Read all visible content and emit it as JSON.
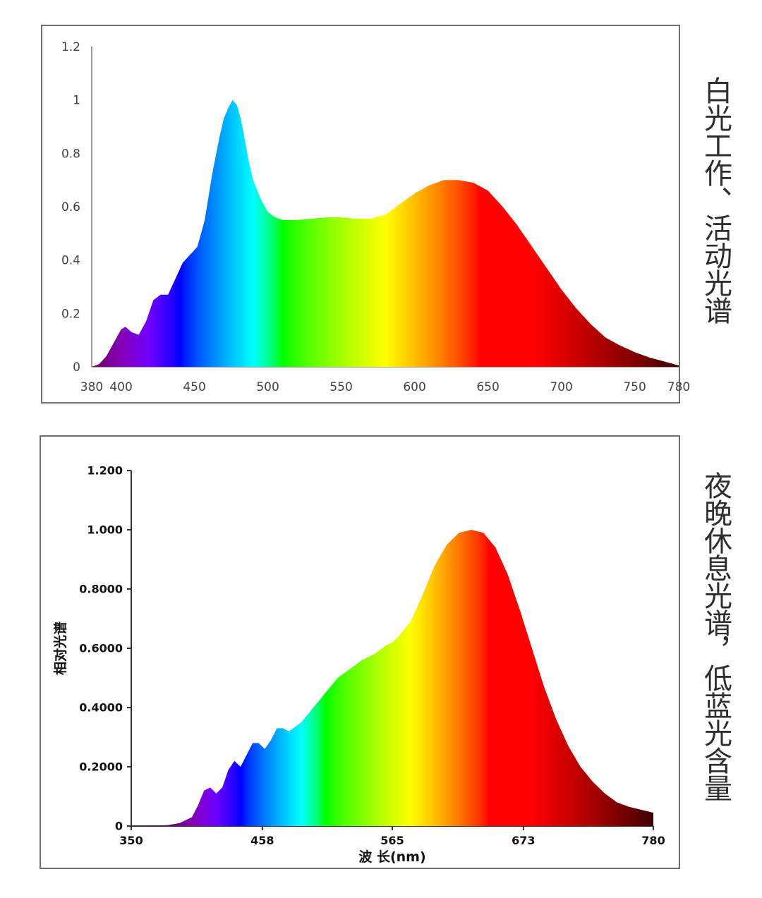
{
  "charts": {
    "day": {
      "caption": "白光工作、活动光谱",
      "y_ticks": [
        "0",
        "0.2",
        "0.4",
        "0.6",
        "0.8",
        "1",
        "1.2"
      ],
      "x_ticks": [
        "380",
        "400",
        "450",
        "500",
        "550",
        "600",
        "650",
        "700",
        "750",
        "780"
      ]
    },
    "night": {
      "caption": "夜晚休息光谱，低蓝光含量",
      "ylabel": "相对光谱",
      "xlabel": "波 长(nm)",
      "y_ticks": [
        "0",
        "0.2000",
        "0.4000",
        "0.6000",
        "0.8000",
        "1.000",
        "1.200"
      ],
      "x_ticks": [
        "350",
        "458",
        "565",
        "673",
        "780"
      ]
    }
  },
  "chart_data": [
    {
      "type": "area",
      "caption": "白光工作、活动光谱",
      "xlim": [
        380,
        780
      ],
      "ylim": [
        0,
        1.2
      ],
      "grid": false,
      "x_ticks": [
        380,
        400,
        450,
        500,
        550,
        600,
        650,
        700,
        750,
        780
      ],
      "y_ticks": [
        0,
        0.2,
        0.4,
        0.6,
        0.8,
        1,
        1.2
      ],
      "series": [
        {
          "x": [
            380,
            385,
            390,
            395,
            400,
            403,
            407,
            412,
            417,
            422,
            427,
            432,
            437,
            442,
            447,
            452,
            457,
            462,
            467,
            470,
            473,
            476,
            479,
            481,
            483,
            485,
            487,
            490,
            495,
            500,
            505,
            510,
            520,
            530,
            540,
            550,
            560,
            570,
            580,
            590,
            600,
            610,
            620,
            630,
            640,
            650,
            660,
            670,
            680,
            690,
            700,
            710,
            720,
            730,
            740,
            750,
            760,
            770,
            780
          ],
          "y": [
            0,
            0.01,
            0.04,
            0.09,
            0.14,
            0.15,
            0.13,
            0.12,
            0.17,
            0.25,
            0.27,
            0.27,
            0.33,
            0.39,
            0.42,
            0.45,
            0.55,
            0.72,
            0.86,
            0.93,
            0.97,
            1.0,
            0.98,
            0.94,
            0.89,
            0.83,
            0.77,
            0.7,
            0.63,
            0.58,
            0.56,
            0.55,
            0.55,
            0.555,
            0.56,
            0.56,
            0.555,
            0.555,
            0.57,
            0.61,
            0.65,
            0.68,
            0.7,
            0.7,
            0.69,
            0.66,
            0.6,
            0.53,
            0.45,
            0.37,
            0.29,
            0.22,
            0.16,
            0.11,
            0.08,
            0.055,
            0.035,
            0.02,
            0.005
          ]
        }
      ]
    },
    {
      "type": "area",
      "caption": "夜晚休息光谱，低蓝光含量",
      "ylabel": "相对光谱",
      "xlabel": "波 长(nm)",
      "xlim": [
        350,
        780
      ],
      "ylim": [
        0,
        1.2
      ],
      "grid": false,
      "x_ticks": [
        350,
        458,
        565,
        673,
        780
      ],
      "y_ticks": [
        0,
        0.2,
        0.4,
        0.6,
        0.8,
        1.0,
        1.2
      ],
      "series": [
        {
          "x": [
            350,
            380,
            390,
            400,
            405,
            410,
            415,
            420,
            425,
            430,
            435,
            440,
            445,
            450,
            455,
            460,
            465,
            470,
            475,
            480,
            490,
            500,
            510,
            520,
            530,
            540,
            550,
            560,
            565,
            570,
            580,
            590,
            600,
            610,
            620,
            630,
            640,
            650,
            660,
            670,
            680,
            690,
            700,
            710,
            720,
            730,
            740,
            750,
            760,
            770,
            780
          ],
          "y": [
            0,
            0.003,
            0.01,
            0.03,
            0.07,
            0.12,
            0.13,
            0.11,
            0.13,
            0.19,
            0.22,
            0.2,
            0.24,
            0.28,
            0.28,
            0.26,
            0.29,
            0.33,
            0.33,
            0.32,
            0.35,
            0.4,
            0.45,
            0.5,
            0.53,
            0.56,
            0.58,
            0.61,
            0.62,
            0.64,
            0.69,
            0.78,
            0.88,
            0.95,
            0.99,
            1.0,
            0.99,
            0.94,
            0.85,
            0.73,
            0.6,
            0.47,
            0.36,
            0.27,
            0.2,
            0.15,
            0.11,
            0.08,
            0.065,
            0.055,
            0.045
          ]
        }
      ]
    }
  ]
}
